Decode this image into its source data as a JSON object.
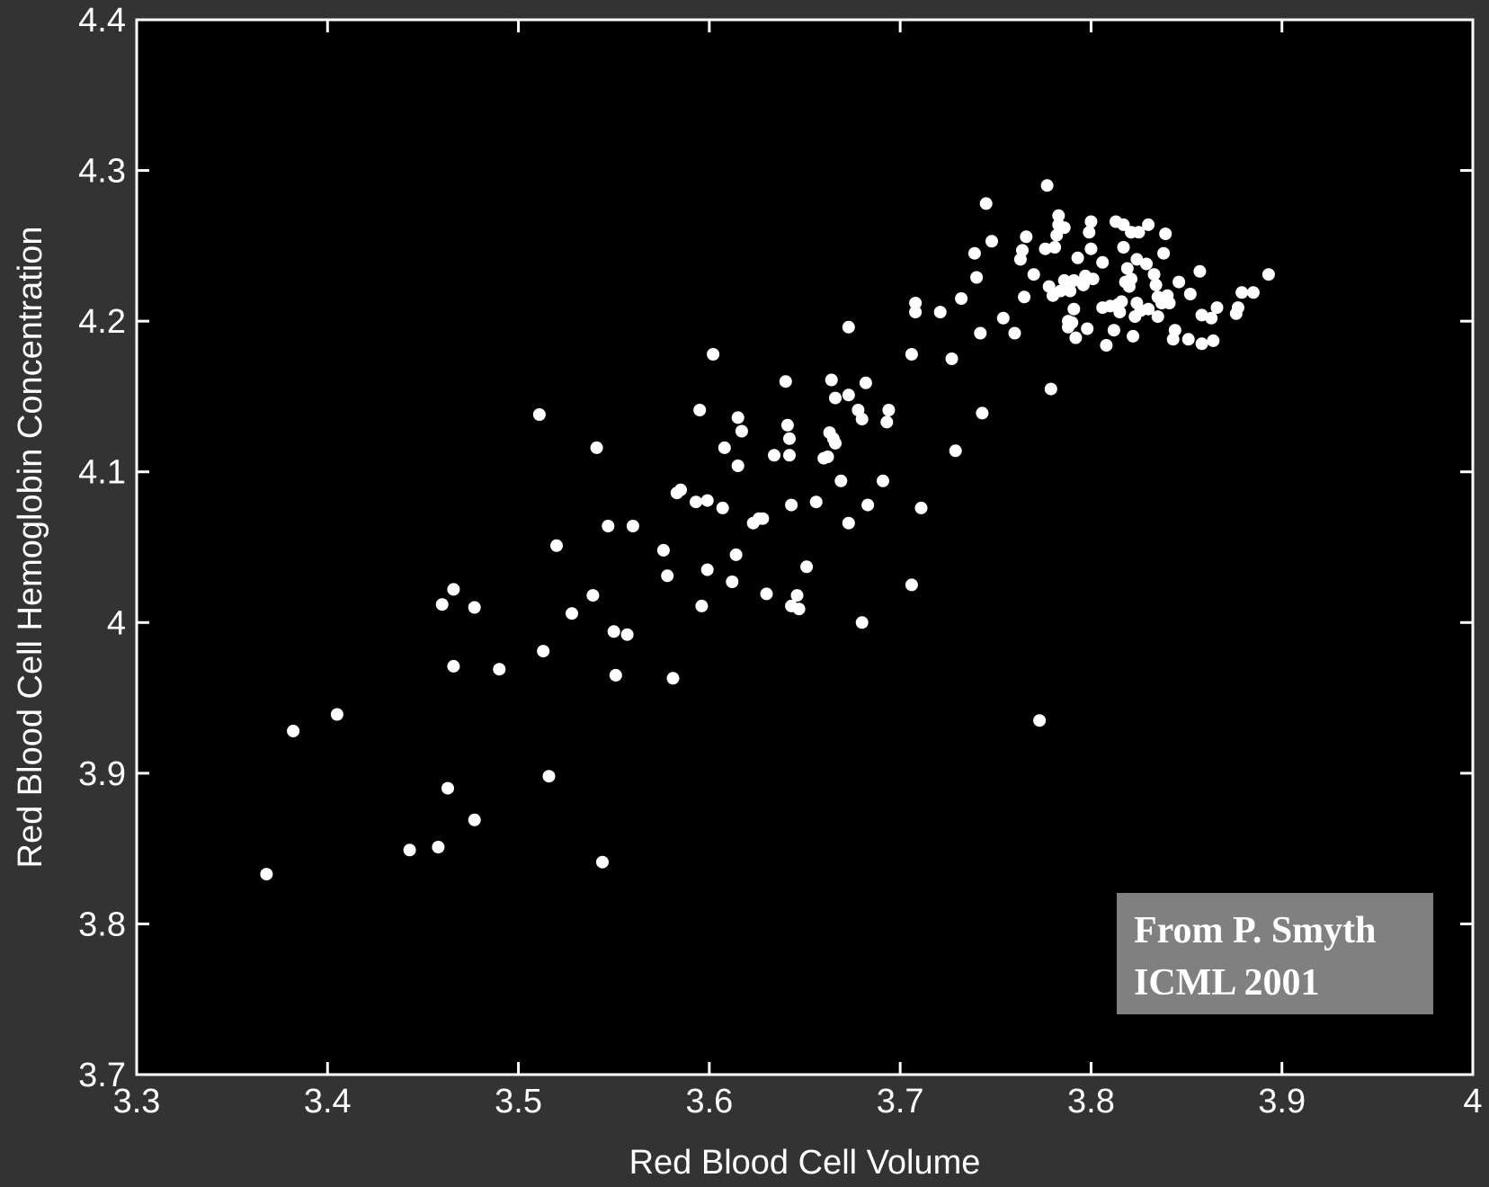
{
  "colors": {
    "figure_background": "#333333",
    "plot_background": "#000000",
    "axes": "#ffffff",
    "points": "#ffffff",
    "annotation_box": "#808080",
    "annotation_text": "#ffffff"
  },
  "chart_data": {
    "type": "scatter",
    "title": "",
    "xlabel": "Red Blood Cell Volume",
    "ylabel": "Red Blood Cell Hemoglobin Concentration",
    "xlim": [
      3.3,
      4.0
    ],
    "ylim": [
      3.7,
      4.4
    ],
    "x_ticks": [
      3.3,
      3.4,
      3.5,
      3.6,
      3.7,
      3.8,
      3.9,
      4.0
    ],
    "x_tick_labels": [
      "3.3",
      "3.4",
      "3.5",
      "3.6",
      "3.7",
      "3.8",
      "3.9",
      "4"
    ],
    "y_ticks": [
      3.7,
      3.8,
      3.9,
      4.0,
      4.1,
      4.2,
      4.3,
      4.4
    ],
    "y_tick_labels": [
      "3.7",
      "3.8",
      "3.9",
      "4",
      "4.1",
      "4.2",
      "4.3",
      "4.4"
    ],
    "grid": false,
    "annotation": {
      "line1": "From P. Smyth",
      "line2": "ICML 2001",
      "placement": "bottom-right"
    },
    "points": [
      [
        3.368,
        3.833
      ],
      [
        3.382,
        3.928
      ],
      [
        3.405,
        3.939
      ],
      [
        3.443,
        3.849
      ],
      [
        3.458,
        3.851
      ],
      [
        3.46,
        4.012
      ],
      [
        3.463,
        3.89
      ],
      [
        3.466,
        4.022
      ],
      [
        3.466,
        3.971
      ],
      [
        3.477,
        4.01
      ],
      [
        3.477,
        3.869
      ],
      [
        3.49,
        3.969
      ],
      [
        3.511,
        4.138
      ],
      [
        3.513,
        3.981
      ],
      [
        3.516,
        3.898
      ],
      [
        3.52,
        4.051
      ],
      [
        3.528,
        4.006
      ],
      [
        3.539,
        4.018
      ],
      [
        3.541,
        4.116
      ],
      [
        3.544,
        3.841
      ],
      [
        3.547,
        4.064
      ],
      [
        3.55,
        3.994
      ],
      [
        3.551,
        3.965
      ],
      [
        3.557,
        3.992
      ],
      [
        3.56,
        4.064
      ],
      [
        3.576,
        4.048
      ],
      [
        3.578,
        4.031
      ],
      [
        3.581,
        3.963
      ],
      [
        3.583,
        4.086
      ],
      [
        3.585,
        4.088
      ],
      [
        3.593,
        4.08
      ],
      [
        3.595,
        4.141
      ],
      [
        3.596,
        4.011
      ],
      [
        3.599,
        4.035
      ],
      [
        3.599,
        4.081
      ],
      [
        3.602,
        4.178
      ],
      [
        3.607,
        4.076
      ],
      [
        3.608,
        4.116
      ],
      [
        3.612,
        4.027
      ],
      [
        3.614,
        4.045
      ],
      [
        3.615,
        4.104
      ],
      [
        3.615,
        4.136
      ],
      [
        3.617,
        4.127
      ],
      [
        3.623,
        4.066
      ],
      [
        3.626,
        4.069
      ],
      [
        3.628,
        4.069
      ],
      [
        3.63,
        4.019
      ],
      [
        3.634,
        4.111
      ],
      [
        3.64,
        4.16
      ],
      [
        3.641,
        4.131
      ],
      [
        3.642,
        4.122
      ],
      [
        3.642,
        4.111
      ],
      [
        3.643,
        4.078
      ],
      [
        3.643,
        4.011
      ],
      [
        3.646,
        4.018
      ],
      [
        3.647,
        4.009
      ],
      [
        3.651,
        4.037
      ],
      [
        3.656,
        4.08
      ],
      [
        3.66,
        4.109
      ],
      [
        3.662,
        4.11
      ],
      [
        3.663,
        4.126
      ],
      [
        3.664,
        4.161
      ],
      [
        3.665,
        4.122
      ],
      [
        3.666,
        4.149
      ],
      [
        3.666,
        4.119
      ],
      [
        3.669,
        4.094
      ],
      [
        3.673,
        4.066
      ],
      [
        3.673,
        4.151
      ],
      [
        3.673,
        4.196
      ],
      [
        3.678,
        4.141
      ],
      [
        3.68,
        4.135
      ],
      [
        3.68,
        4.0
      ],
      [
        3.682,
        4.159
      ],
      [
        3.683,
        4.078
      ],
      [
        3.691,
        4.094
      ],
      [
        3.693,
        4.133
      ],
      [
        3.694,
        4.141
      ],
      [
        3.706,
        4.025
      ],
      [
        3.706,
        4.178
      ],
      [
        3.708,
        4.212
      ],
      [
        3.708,
        4.206
      ],
      [
        3.711,
        4.076
      ],
      [
        3.721,
        4.206
      ],
      [
        3.727,
        4.175
      ],
      [
        3.729,
        4.114
      ],
      [
        3.732,
        4.215
      ],
      [
        3.739,
        4.245
      ],
      [
        3.74,
        4.229
      ],
      [
        3.742,
        4.192
      ],
      [
        3.743,
        4.139
      ],
      [
        3.745,
        4.278
      ],
      [
        3.748,
        4.253
      ],
      [
        3.754,
        4.202
      ],
      [
        3.76,
        4.192
      ],
      [
        3.763,
        4.241
      ],
      [
        3.764,
        4.247
      ],
      [
        3.765,
        4.216
      ],
      [
        3.766,
        4.256
      ],
      [
        3.77,
        4.231
      ],
      [
        3.773,
        3.935
      ],
      [
        3.776,
        4.248
      ],
      [
        3.777,
        4.29
      ],
      [
        3.778,
        4.223
      ],
      [
        3.779,
        4.155
      ],
      [
        3.78,
        4.217
      ],
      [
        3.781,
        4.249
      ],
      [
        3.782,
        4.257
      ],
      [
        3.783,
        4.264
      ],
      [
        3.783,
        4.27
      ],
      [
        3.784,
        4.22
      ],
      [
        3.786,
        4.227
      ],
      [
        3.786,
        4.262
      ],
      [
        3.788,
        4.2
      ],
      [
        3.788,
        4.196
      ],
      [
        3.789,
        4.22
      ],
      [
        3.79,
        4.199
      ],
      [
        3.791,
        4.227
      ],
      [
        3.791,
        4.208
      ],
      [
        3.792,
        4.189
      ],
      [
        3.793,
        4.242
      ],
      [
        3.796,
        4.224
      ],
      [
        3.797,
        4.23
      ],
      [
        3.798,
        4.195
      ],
      [
        3.799,
        4.259
      ],
      [
        3.8,
        4.266
      ],
      [
        3.8,
        4.248
      ],
      [
        3.801,
        4.228
      ],
      [
        3.806,
        4.239
      ],
      [
        3.806,
        4.209
      ],
      [
        3.808,
        4.184
      ],
      [
        3.81,
        4.21
      ],
      [
        3.812,
        4.194
      ],
      [
        3.813,
        4.266
      ],
      [
        3.814,
        4.211
      ],
      [
        3.815,
        4.206
      ],
      [
        3.816,
        4.213
      ],
      [
        3.817,
        4.264
      ],
      [
        3.817,
        4.249
      ],
      [
        3.818,
        4.226
      ],
      [
        3.819,
        4.235
      ],
      [
        3.82,
        4.223
      ],
      [
        3.821,
        4.259
      ],
      [
        3.821,
        4.228
      ],
      [
        3.822,
        4.19
      ],
      [
        3.823,
        4.203
      ],
      [
        3.824,
        4.241
      ],
      [
        3.824,
        4.212
      ],
      [
        3.825,
        4.259
      ],
      [
        3.826,
        4.207
      ],
      [
        3.829,
        4.238
      ],
      [
        3.83,
        4.264
      ],
      [
        3.83,
        4.208
      ],
      [
        3.833,
        4.231
      ],
      [
        3.834,
        4.224
      ],
      [
        3.835,
        4.216
      ],
      [
        3.835,
        4.203
      ],
      [
        3.837,
        4.212
      ],
      [
        3.838,
        4.245
      ],
      [
        3.839,
        4.258
      ],
      [
        3.84,
        4.217
      ],
      [
        3.841,
        4.212
      ],
      [
        3.843,
        4.188
      ],
      [
        3.844,
        4.194
      ],
      [
        3.846,
        4.226
      ],
      [
        3.851,
        4.188
      ],
      [
        3.852,
        4.218
      ],
      [
        3.857,
        4.233
      ],
      [
        3.858,
        4.204
      ],
      [
        3.858,
        4.185
      ],
      [
        3.863,
        4.202
      ],
      [
        3.864,
        4.187
      ],
      [
        3.866,
        4.209
      ],
      [
        3.876,
        4.205
      ],
      [
        3.877,
        4.209
      ],
      [
        3.879,
        4.219
      ],
      [
        3.885,
        4.219
      ],
      [
        3.893,
        4.231
      ]
    ]
  }
}
